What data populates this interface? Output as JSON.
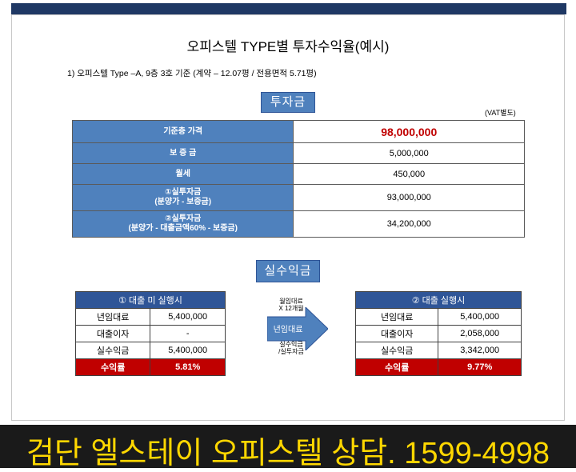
{
  "title": "오피스텔 TYPE별 투자수익율(예시)",
  "subtitle": "1) 오피스텔  Type –A, 9층 3호 기준 (계약 – 12.07평 / 전용면적 5.71평)",
  "investment": {
    "heading": "투자금",
    "vat_note": "(VAT별도)",
    "rows": [
      {
        "label": "기준층 가격",
        "value": "98,000,000"
      },
      {
        "label": "보 증 금",
        "value": "5,000,000"
      },
      {
        "label": "월세",
        "value": "450,000"
      },
      {
        "label": "①실투자금",
        "label2": "(분양가 - 보증금)",
        "value": "93,000,000"
      },
      {
        "label": "②실투자금",
        "label2": "(분양가 - 대출금액60% - 보증금)",
        "value": "34,200,000"
      }
    ]
  },
  "profit": {
    "heading": "실수익금",
    "arrow_top": [
      "월임대료",
      "X 12개월"
    ],
    "arrow_label": "년임대료",
    "arrow_bottom": [
      "실수익금",
      "/실투자금"
    ],
    "table1": {
      "header": "① 대출 미 실행시",
      "rows": [
        {
          "label": "년임대료",
          "value": "5,400,000"
        },
        {
          "label": "대출이자",
          "value": "-"
        },
        {
          "label": "실수익금",
          "value": "5,400,000"
        }
      ],
      "yield_label": "수익률",
      "yield_value": "5.81%"
    },
    "table2": {
      "header": "② 대출 실행시",
      "rows": [
        {
          "label": "년임대료",
          "value": "5,400,000"
        },
        {
          "label": "대출이자",
          "value": "2,058,000"
        },
        {
          "label": "실수익금",
          "value": "3,342,000"
        }
      ],
      "yield_label": "수익률",
      "yield_value": "9.77%"
    }
  },
  "banner": "검단 엘스테이 오피스텔 상담. 1599-4998",
  "colors": {
    "header_blue": "#4f81bd",
    "dark_blue": "#2f5597",
    "red": "#c00000",
    "banner_text": "#ffd700",
    "banner_bg": "#1a1a1a"
  }
}
